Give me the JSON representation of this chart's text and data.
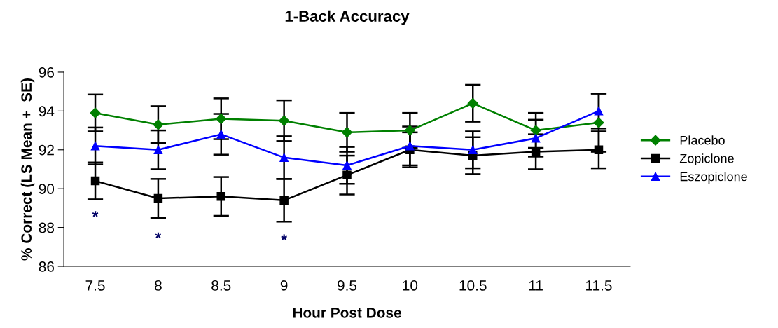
{
  "chart_data": {
    "type": "line",
    "title": "1-Back Accuracy",
    "xlabel": "Hour Post Dose",
    "ylabel": "% Correct (LS Mean +  SE)",
    "categories": [
      "7.5",
      "8",
      "8.5",
      "9",
      "9.5",
      "10",
      "10.5",
      "11",
      "11.5"
    ],
    "series": [
      {
        "name": "Placebo",
        "color": "#008000",
        "marker": "diamond",
        "values": [
          93.9,
          93.3,
          93.6,
          93.5,
          92.9,
          93.0,
          94.4,
          93.0,
          93.4
        ],
        "errors": [
          0.95,
          0.95,
          1.05,
          1.05,
          1.0,
          0.9,
          0.95,
          0.9,
          1.5
        ]
      },
      {
        "name": "Zopiclone",
        "color": "#000000",
        "marker": "square",
        "values": [
          90.4,
          89.5,
          89.6,
          89.4,
          90.7,
          92.0,
          91.7,
          91.9,
          92.0
        ],
        "errors": [
          0.95,
          1.0,
          1.0,
          1.1,
          1.0,
          0.9,
          0.95,
          0.9,
          0.95
        ]
      },
      {
        "name": "Eszopiclone",
        "color": "#0000ff",
        "marker": "triangle",
        "values": [
          92.2,
          92.0,
          92.8,
          91.6,
          91.2,
          92.2,
          92.0,
          92.6,
          94.0
        ],
        "errors": [
          0.95,
          1.0,
          1.05,
          1.1,
          0.95,
          1.0,
          0.95,
          0.95,
          0.9
        ]
      }
    ],
    "annotations": [
      "*",
      "*",
      "*"
    ],
    "ylim": [
      86,
      96
    ],
    "yticks": [
      86,
      88,
      90,
      92,
      94,
      96
    ],
    "grid": false,
    "legend": "right",
    "line_style": "solid"
  }
}
